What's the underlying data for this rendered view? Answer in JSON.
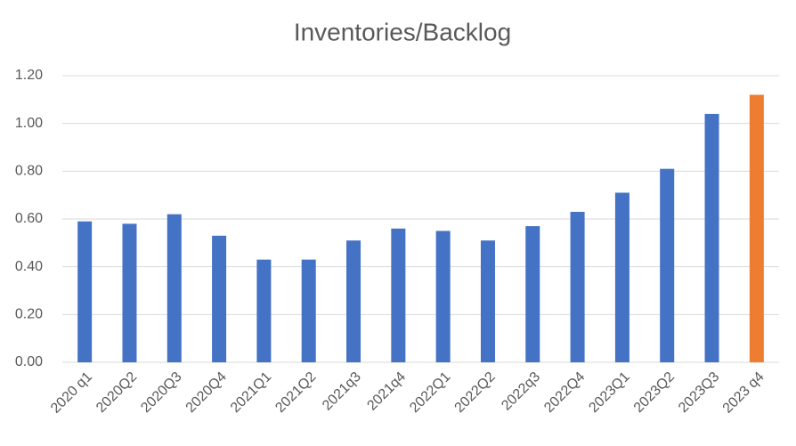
{
  "chart_data": {
    "type": "bar",
    "title": "Inventories/Backlog",
    "categories": [
      "2020 q1",
      "2020Q2",
      "2020Q3",
      "2020Q4",
      "2021Q1",
      "2021Q2",
      "2021q3",
      "2021q4",
      "2022Q1",
      "2022Q2",
      "2022q3",
      "2022Q4",
      "2023Q1",
      "2023Q2",
      "2023Q3",
      "2023 q4"
    ],
    "values": [
      0.59,
      0.58,
      0.62,
      0.53,
      0.43,
      0.43,
      0.51,
      0.56,
      0.55,
      0.51,
      0.57,
      0.63,
      0.71,
      0.81,
      1.04,
      1.12
    ],
    "colors": [
      "#4472c4",
      "#4472c4",
      "#4472c4",
      "#4472c4",
      "#4472c4",
      "#4472c4",
      "#4472c4",
      "#4472c4",
      "#4472c4",
      "#4472c4",
      "#4472c4",
      "#4472c4",
      "#4472c4",
      "#4472c4",
      "#4472c4",
      "#ed7d31"
    ],
    "ylim": [
      0,
      1.2
    ],
    "yticks": [
      {
        "value": 0,
        "label": "0.00"
      },
      {
        "value": 0.2,
        "label": "0.20"
      },
      {
        "value": 0.4,
        "label": "0.40"
      },
      {
        "value": 0.6,
        "label": "0.60"
      },
      {
        "value": 0.8,
        "label": "0.80"
      },
      {
        "value": 1.0,
        "label": "1.00"
      },
      {
        "value": 1.2,
        "label": "1.20"
      }
    ],
    "grid": true
  }
}
